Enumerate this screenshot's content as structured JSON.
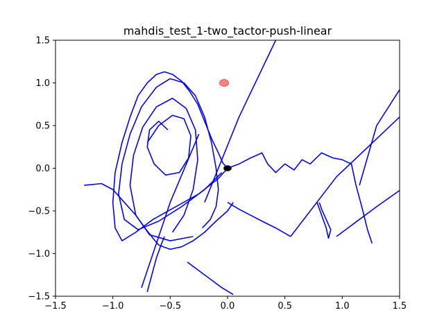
{
  "chart_data": {
    "type": "line",
    "title": "mahdis_test_1-two_tactor-push-linear",
    "xlabel": "",
    "ylabel": "",
    "xlim": [
      -1.5,
      1.5
    ],
    "ylim": [
      -1.5,
      1.5
    ],
    "grid": false,
    "xticks": [
      -1.5,
      -1.0,
      -0.5,
      0.0,
      0.5,
      1.0,
      1.5
    ],
    "xtick_labels": [
      "−1.5",
      "−1.0",
      "−0.5",
      "0.0",
      "0.5",
      "1.0",
      "1.5"
    ],
    "yticks": [
      -1.5,
      -1.0,
      -0.5,
      0.0,
      0.5,
      1.0,
      1.5
    ],
    "ytick_labels": [
      "−1.5",
      "−1.0",
      "−0.5",
      "0.0",
      "0.5",
      "1.0",
      "1.5"
    ],
    "colors": {
      "trajectory": "#0000ff",
      "target": "#ff6b6b",
      "origin": "#000000"
    },
    "series": [
      {
        "kind": "trajectory",
        "x": [
          0.0,
          -0.08,
          -0.25,
          -0.45,
          -0.65,
          -0.8,
          -0.92,
          -0.98,
          -1.0,
          -0.98,
          -0.92,
          -0.85,
          -0.78,
          -0.7,
          -0.62,
          -0.55,
          -0.48,
          -0.4,
          -0.33,
          -0.26,
          -0.2,
          -0.14,
          -0.08,
          -0.04,
          0.0
        ],
        "y": [
          0.0,
          -0.12,
          -0.3,
          -0.45,
          -0.6,
          -0.75,
          -0.85,
          -0.7,
          -0.4,
          -0.05,
          0.3,
          0.6,
          0.85,
          1.0,
          1.1,
          1.13,
          1.1,
          1.02,
          0.9,
          0.75,
          0.55,
          0.35,
          0.18,
          0.06,
          0.0
        ]
      },
      {
        "kind": "trajectory",
        "x": [
          -0.05,
          -0.2,
          -0.4,
          -0.6,
          -0.78,
          -0.9,
          -0.95,
          -0.92,
          -0.85,
          -0.75,
          -0.62,
          -0.5,
          -0.38,
          -0.28,
          -0.2,
          -0.14,
          -0.1,
          -0.08,
          -0.1,
          -0.15,
          -0.22
        ],
        "y": [
          -0.05,
          -0.25,
          -0.45,
          -0.62,
          -0.72,
          -0.6,
          -0.3,
          0.05,
          0.4,
          0.72,
          0.95,
          1.05,
          1.0,
          0.85,
          0.6,
          0.3,
          0.0,
          -0.25,
          -0.45,
          -0.6,
          -0.7
        ]
      },
      {
        "kind": "trajectory",
        "x": [
          -0.3,
          -0.5,
          -0.68,
          -0.8,
          -0.85,
          -0.82,
          -0.74,
          -0.62,
          -0.48,
          -0.36,
          -0.28,
          -0.26,
          -0.3,
          -0.38,
          -0.48
        ],
        "y": [
          -0.8,
          -0.85,
          -0.78,
          -0.55,
          -0.2,
          0.15,
          0.48,
          0.72,
          0.82,
          0.7,
          0.45,
          0.1,
          -0.25,
          -0.55,
          -0.75
        ]
      },
      {
        "kind": "trajectory",
        "x": [
          -0.7,
          -0.6,
          -0.48,
          -0.38,
          -0.32,
          -0.34,
          -0.42,
          -0.54,
          -0.64,
          -0.7,
          -0.68,
          -0.6,
          -0.52
        ],
        "y": [
          0.3,
          0.5,
          0.62,
          0.58,
          0.38,
          0.12,
          -0.05,
          -0.08,
          0.05,
          0.25,
          0.45,
          0.55,
          0.45
        ]
      },
      {
        "kind": "trajectory",
        "x": [
          -1.25,
          -1.1,
          -1.0,
          -0.9,
          -0.8,
          -0.72,
          -0.65,
          -0.6
        ],
        "y": [
          -0.2,
          -0.18,
          -0.25,
          -0.4,
          -0.55,
          -0.7,
          -0.82,
          -0.9
        ]
      },
      {
        "kind": "trajectory",
        "x": [
          -0.6,
          -0.5,
          -0.4,
          -0.3,
          -0.2,
          -0.1,
          0.0,
          0.05
        ],
        "y": [
          -0.9,
          -0.95,
          -0.92,
          -0.85,
          -0.75,
          -0.62,
          -0.5,
          -0.4
        ]
      },
      {
        "kind": "trajectory",
        "x": [
          -0.7,
          -0.66,
          -0.62,
          -0.58,
          -0.55
        ],
        "y": [
          -1.45,
          -1.25,
          -1.05,
          -0.9,
          -0.8
        ]
      },
      {
        "kind": "trajectory",
        "x": [
          -0.35,
          -0.25,
          -0.15,
          -0.05,
          0.05
        ],
        "y": [
          -1.1,
          -1.2,
          -1.3,
          -1.4,
          -1.48
        ]
      },
      {
        "kind": "trajectory",
        "x": [
          -0.2,
          0.1,
          0.42
        ],
        "y": [
          -0.4,
          0.6,
          1.5
        ]
      },
      {
        "kind": "trajectory",
        "x": [
          -0.75,
          -0.5,
          -0.25
        ],
        "y": [
          -1.4,
          -0.4,
          0.4
        ]
      },
      {
        "kind": "trajectory",
        "x": [
          0.0,
          0.1,
          0.2,
          0.3,
          0.35,
          0.42,
          0.5,
          0.58,
          0.65,
          0.72,
          0.82,
          0.92,
          1.0,
          1.08,
          1.12,
          1.18,
          1.22,
          1.26
        ],
        "y": [
          0.0,
          0.05,
          0.12,
          0.18,
          0.05,
          -0.05,
          0.05,
          -0.02,
          0.1,
          0.05,
          0.18,
          0.12,
          0.1,
          0.05,
          -0.2,
          -0.5,
          -0.72,
          -0.88
        ]
      },
      {
        "kind": "trajectory",
        "x": [
          0.55,
          0.95,
          1.5
        ],
        "y": [
          -0.8,
          -0.1,
          0.6
        ]
      },
      {
        "kind": "trajectory",
        "x": [
          0.95,
          1.1,
          1.3,
          1.5
        ],
        "y": [
          -0.8,
          -0.65,
          -0.45,
          -0.26
        ]
      },
      {
        "kind": "trajectory",
        "x": [
          1.15,
          1.3,
          1.5
        ],
        "y": [
          -0.2,
          0.5,
          0.92
        ]
      },
      {
        "kind": "trajectory",
        "x": [
          0.78,
          0.82,
          0.86,
          0.88,
          0.9,
          0.86,
          0.82,
          0.8
        ],
        "y": [
          -0.4,
          -0.55,
          -0.7,
          -0.82,
          -0.72,
          -0.6,
          -0.48,
          -0.4
        ]
      },
      {
        "kind": "trajectory",
        "x": [
          0.0,
          0.1,
          0.2,
          0.3,
          0.42,
          0.55
        ],
        "y": [
          -0.4,
          -0.48,
          -0.55,
          -0.62,
          -0.7,
          -0.8
        ]
      }
    ],
    "markers": [
      {
        "name": "target",
        "x": -0.03,
        "y": 1.0,
        "rx": 0.04,
        "ry": 0.04
      },
      {
        "name": "origin",
        "x": 0.0,
        "y": 0.0,
        "rx": 0.035,
        "ry": 0.035
      }
    ]
  }
}
